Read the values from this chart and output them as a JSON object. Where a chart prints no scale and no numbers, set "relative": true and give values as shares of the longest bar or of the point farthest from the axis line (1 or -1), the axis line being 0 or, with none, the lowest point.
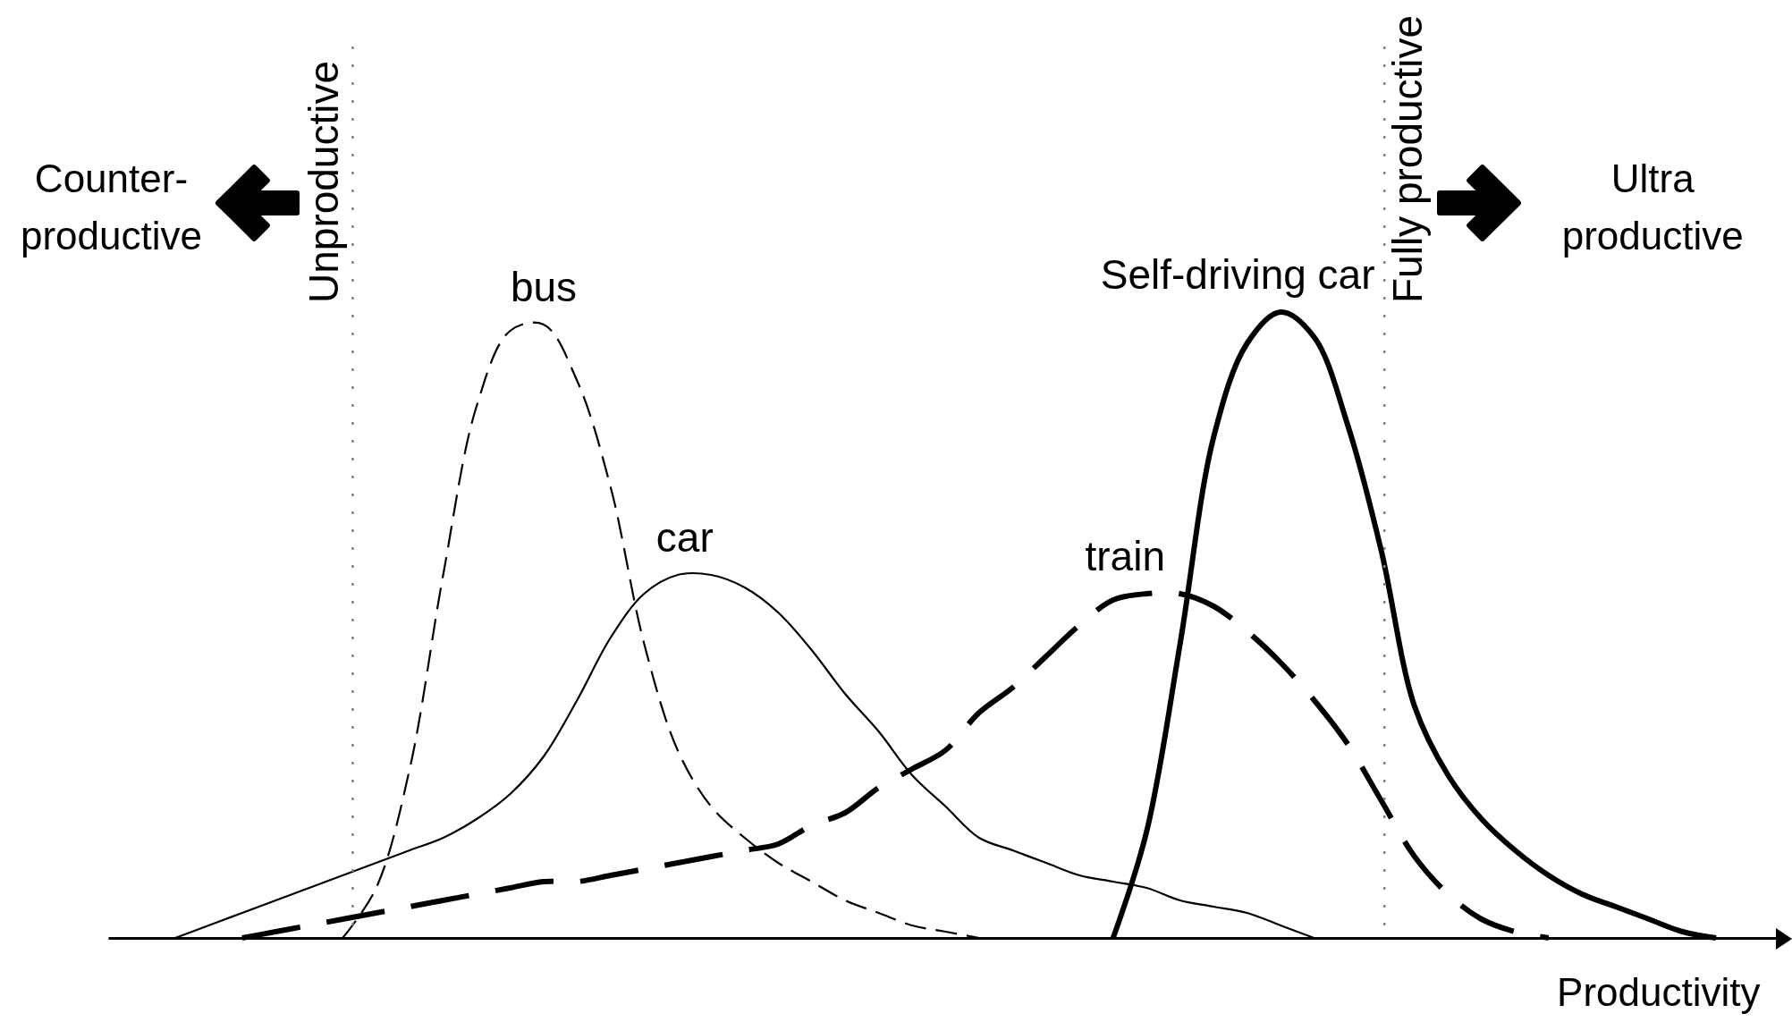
{
  "chart_data": {
    "type": "line",
    "relative": true,
    "xlabel": "Productivity",
    "legend": false,
    "grid": false,
    "categories": [
      null,
      null,
      null,
      null,
      null,
      null,
      null,
      null,
      null,
      null,
      null,
      null,
      null,
      null,
      null,
      null,
      null,
      null,
      null,
      null,
      null,
      null,
      null,
      null,
      null,
      null,
      null,
      null,
      null,
      null,
      null,
      null,
      null,
      null,
      null,
      null,
      null,
      null,
      null,
      null,
      null,
      null,
      null,
      null,
      null,
      null,
      null,
      null,
      null,
      null,
      null
    ],
    "annotations": [
      "Unproductive",
      "Fully productive",
      "Counter-productive",
      "Ultra productive"
    ],
    "series": [
      {
        "name": "bus",
        "color": "#000000",
        "line_style": "dashed",
        "values": [
          null,
          null,
          null,
          null,
          null,
          null,
          null,
          0,
          0.08,
          0.27,
          0.58,
          0.85,
          0.97,
          0.98,
          0.89,
          0.72,
          0.47,
          0.3,
          0.21,
          0.16,
          0.12,
          0.09,
          0.06,
          0.04,
          0.02,
          0.01,
          0,
          null,
          null,
          null,
          null,
          null,
          null,
          null,
          null,
          null,
          null,
          null,
          null,
          null,
          null,
          null,
          null,
          null,
          null,
          null,
          null,
          null,
          null,
          null,
          null
        ]
      },
      {
        "name": "car",
        "color": "#000000",
        "line_style": "solid",
        "values": [
          null,
          null,
          0,
          0.02,
          0.04,
          0.06,
          0.08,
          0.1,
          0.12,
          0.14,
          0.16,
          0.19,
          0.23,
          0.29,
          0.38,
          0.48,
          0.55,
          0.58,
          0.58,
          0.56,
          0.52,
          0.46,
          0.39,
          0.33,
          0.26,
          0.21,
          0.16,
          0.14,
          0.12,
          0.1,
          0.09,
          0.08,
          0.06,
          0.05,
          0.04,
          0.02,
          0,
          null,
          null,
          null,
          null,
          null,
          null,
          null,
          null,
          null,
          null,
          null,
          null,
          null,
          null
        ]
      },
      {
        "name": "train",
        "color": "#000000",
        "line_style": "dashed",
        "values": [
          null,
          null,
          null,
          null,
          0,
          0.01,
          0.02,
          0.03,
          0.04,
          0.05,
          0.06,
          0.07,
          0.08,
          0.09,
          0.09,
          0.1,
          0.11,
          0.12,
          0.13,
          0.14,
          0.15,
          0.18,
          0.2,
          0.24,
          0.27,
          0.3,
          0.36,
          0.4,
          0.45,
          0.5,
          0.54,
          0.55,
          0.55,
          0.53,
          0.49,
          0.44,
          0.38,
          0.31,
          0.22,
          0.13,
          0.07,
          0.03,
          0.01,
          0,
          null,
          null,
          null,
          null,
          null,
          null,
          null
        ]
      },
      {
        "name": "Self-driving car",
        "color": "#000000",
        "line_style": "solid",
        "values": [
          null,
          null,
          null,
          null,
          null,
          null,
          null,
          null,
          null,
          null,
          null,
          null,
          null,
          null,
          null,
          null,
          null,
          null,
          null,
          null,
          null,
          null,
          null,
          null,
          null,
          null,
          null,
          null,
          null,
          null,
          0,
          0.17,
          0.47,
          0.8,
          0.95,
          1.0,
          0.96,
          0.82,
          0.62,
          0.37,
          0.26,
          0.19,
          0.14,
          0.1,
          0.07,
          0.05,
          0.03,
          0.01,
          0,
          null,
          null
        ]
      }
    ]
  }
}
